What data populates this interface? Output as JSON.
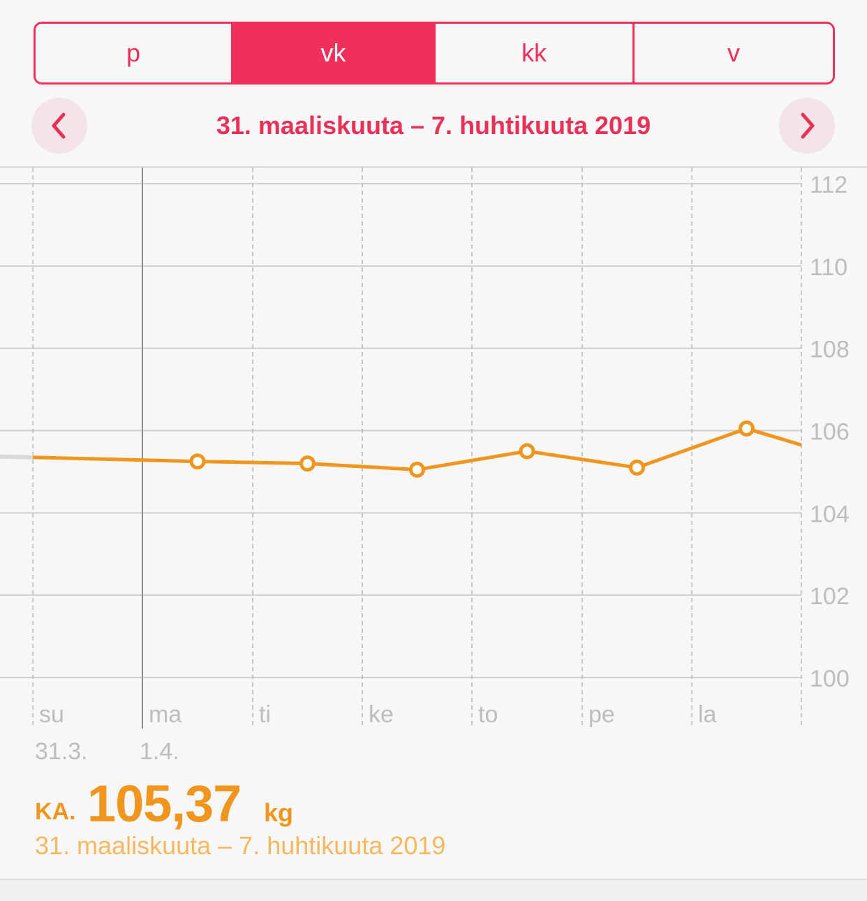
{
  "segments": [
    {
      "label": "p",
      "active": false
    },
    {
      "label": "vk",
      "active": true
    },
    {
      "label": "kk",
      "active": false
    },
    {
      "label": "v",
      "active": false
    }
  ],
  "nav": {
    "title": "31. maaliskuuta – 7. huhtikuuta 2019",
    "prev_icon": "chevron-left-icon",
    "next_icon": "chevron-right-icon"
  },
  "colors": {
    "accent": "#f0305a",
    "line": "#f0961e",
    "summary_sub": "#f5b860",
    "grid": "#c8c8c8",
    "axis_text": "#bdbdbd"
  },
  "chart_data": {
    "type": "line",
    "ylim": [
      100,
      112
    ],
    "y_ticks": [
      "112",
      "110",
      "108",
      "106",
      "104",
      "102",
      "100"
    ],
    "days": [
      {
        "label": "su",
        "date": "31.3."
      },
      {
        "label": "ma",
        "date": "1.4."
      },
      {
        "label": "ti",
        "date": ""
      },
      {
        "label": "ke",
        "date": ""
      },
      {
        "label": "to",
        "date": ""
      },
      {
        "label": "pe",
        "date": ""
      },
      {
        "label": "la",
        "date": ""
      }
    ],
    "series": [
      {
        "points": [
          {
            "day": "ma",
            "value": 105.25
          },
          {
            "day": "ti",
            "value": 105.2
          },
          {
            "day": "ke",
            "value": 105.05
          },
          {
            "day": "to",
            "value": 105.5
          },
          {
            "day": "pe",
            "value": 105.1
          },
          {
            "day": "la",
            "value": 106.05
          }
        ],
        "continues_before": 105.35,
        "continues_after": 105.65
      }
    ]
  },
  "summary": {
    "label": "KA.",
    "value": "105,37",
    "unit": "kg",
    "range": "31. maaliskuuta – 7. huhtikuuta 2019"
  }
}
